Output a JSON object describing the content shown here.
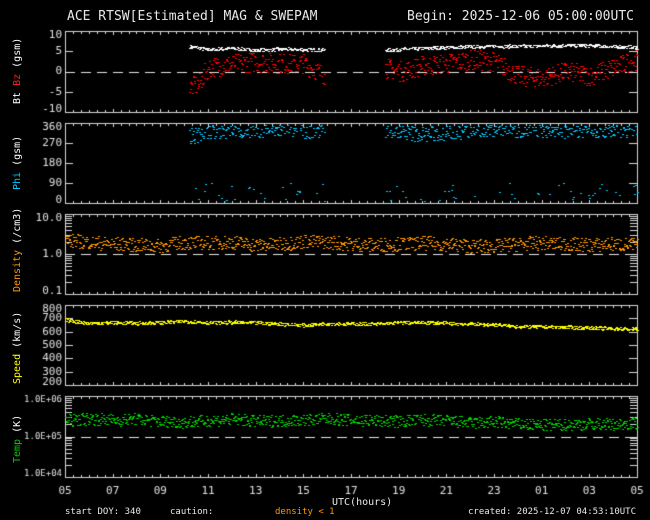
{
  "header": {
    "title": "ACE RTSW[Estimated] MAG & SWEPAM",
    "begin": "Begin: 2025-12-06 05:00:00UTC"
  },
  "footer": {
    "start_doy": "start DOY: 340",
    "caution": "caution:",
    "density_note": "density < 1",
    "created": "created: 2025-12-07 04:53:10UTC",
    "xlabel": "UTC(hours)"
  },
  "panel_labels": {
    "bt": "Bt",
    "bz": "Bz",
    "bunit": "(gsm)",
    "phi": "Phi",
    "phiunit": "(gsm)",
    "density": "Density",
    "densityunit": "(/cm3)",
    "speed": "Speed",
    "speedunit": "(km/s)",
    "temp": "Temp",
    "tempunit": "(K)"
  },
  "colors": {
    "bt": "#ffffff",
    "bz": "#ff0000",
    "phi": "#00c8ff",
    "density": "#ff9900",
    "speed": "#ffff00",
    "temp": "#00d000",
    "axis": "#d8d8d8"
  },
  "chart_data": [
    {
      "type": "scatter",
      "name": "Bt/Bz",
      "title": "ACE RTSW[Estimated] MAG & SWEPAM",
      "ylabel": "Bt Bz (gsm)",
      "yticks": [
        "10",
        "5",
        "0",
        "-5",
        "-10"
      ],
      "ylim": [
        -10,
        10
      ],
      "dashed_ref": 0,
      "data_gaps": [
        [
          5.0,
          10.2
        ],
        [
          15.9,
          18.4
        ]
      ],
      "series": [
        {
          "name": "Bt",
          "hours": [
            10.2,
            11,
            12,
            13,
            14,
            15,
            15.9,
            18.4,
            19,
            20,
            21,
            22,
            23,
            24,
            25,
            26,
            27,
            28,
            29
          ],
          "values": [
            6.2,
            5.5,
            5.8,
            5.3,
            5.6,
            5.5,
            5.4,
            5.3,
            5.5,
            5.8,
            6.0,
            6.2,
            6.3,
            6.3,
            6.4,
            6.5,
            6.5,
            6.2,
            6.0
          ]
        },
        {
          "name": "Bz",
          "hours": [
            10.2,
            10.6,
            11,
            12,
            13,
            14,
            15,
            15.9,
            18.4,
            19,
            20,
            21,
            22,
            23,
            24,
            25,
            26,
            27,
            28,
            29
          ],
          "values": [
            -4,
            -3,
            1,
            2,
            2.5,
            2,
            2,
            -1,
            1,
            0,
            1.5,
            2,
            3,
            2.5,
            -1,
            -1.5,
            0,
            -1,
            1,
            3
          ]
        }
      ]
    },
    {
      "type": "scatter",
      "name": "Phi",
      "ylabel": "Phi (gsm)",
      "yticks": [
        "360",
        "270",
        "180",
        "90",
        "0"
      ],
      "ylim": [
        0,
        360
      ],
      "data_gaps": [
        [
          5.0,
          10.2
        ],
        [
          15.9,
          18.4
        ]
      ],
      "series": [
        {
          "name": "Phi",
          "hours": [
            10.2,
            11,
            12,
            13,
            14,
            15,
            15.9,
            18.4,
            19,
            20,
            21,
            22,
            23,
            24,
            25,
            26,
            27,
            28,
            29
          ],
          "values": [
            300,
            320,
            325,
            330,
            330,
            325,
            330,
            330,
            320,
            310,
            315,
            330,
            335,
            330,
            330,
            325,
            330,
            330,
            335
          ]
        }
      ]
    },
    {
      "type": "scatter",
      "name": "Density",
      "ylabel": "Density (/cm3)",
      "yticks": [
        "10.0",
        "1.0",
        "0.1"
      ],
      "yscale": "log",
      "ylim": [
        0.1,
        10
      ],
      "dashed_ref": 1.0,
      "series": [
        {
          "name": "Density",
          "hours": [
            5,
            6,
            7,
            8,
            9,
            10,
            11,
            12,
            13,
            14,
            15,
            16,
            17,
            18,
            19,
            20,
            21,
            22,
            23,
            24,
            25,
            26,
            27,
            28,
            29
          ],
          "values": [
            2.2,
            2.0,
            1.8,
            1.7,
            1.6,
            2.0,
            1.9,
            2.0,
            1.7,
            1.8,
            2.1,
            2.0,
            1.8,
            1.7,
            1.8,
            1.9,
            1.8,
            1.6,
            1.6,
            1.8,
            1.9,
            1.8,
            1.7,
            1.8,
            1.7
          ]
        }
      ]
    },
    {
      "type": "scatter",
      "name": "Speed",
      "ylabel": "Speed (km/s)",
      "yticks": [
        "800",
        "700",
        "600",
        "500",
        "400",
        "300",
        "200"
      ],
      "ylim": [
        200,
        800
      ],
      "series": [
        {
          "name": "Speed",
          "hours": [
            5,
            6,
            7,
            8,
            9,
            10,
            11,
            12,
            13,
            14,
            15,
            16,
            17,
            18,
            19,
            20,
            21,
            22,
            23,
            24,
            25,
            26,
            27,
            28,
            29
          ],
          "values": [
            690,
            665,
            670,
            665,
            670,
            680,
            670,
            672,
            668,
            660,
            650,
            665,
            660,
            660,
            670,
            672,
            665,
            660,
            655,
            640,
            640,
            635,
            630,
            625,
            620
          ]
        }
      ]
    },
    {
      "type": "scatter",
      "name": "Temp",
      "ylabel": "Temp (K)",
      "yticks": [
        "1.0E+06",
        "1.0E+05",
        "1.0E+04"
      ],
      "yscale": "log",
      "ylim": [
        10000,
        1000000
      ],
      "dashed_ref": 100000,
      "series": [
        {
          "name": "Temp",
          "hours": [
            5,
            6,
            7,
            8,
            9,
            10,
            11,
            12,
            13,
            14,
            15,
            16,
            17,
            18,
            19,
            20,
            21,
            22,
            23,
            24,
            25,
            26,
            27,
            28,
            29
          ],
          "values": [
            250000,
            280000,
            260000,
            270000,
            240000,
            230000,
            250000,
            270000,
            240000,
            250000,
            260000,
            280000,
            260000,
            250000,
            240000,
            260000,
            250000,
            220000,
            230000,
            210000,
            190000,
            200000,
            210000,
            200000,
            220000
          ]
        }
      ]
    }
  ],
  "xaxis": {
    "label": "UTC(hours)",
    "ticks": [
      "05",
      "07",
      "09",
      "11",
      "13",
      "15",
      "17",
      "19",
      "21",
      "23",
      "01",
      "03",
      "05"
    ],
    "range_hours": [
      5,
      29
    ]
  }
}
